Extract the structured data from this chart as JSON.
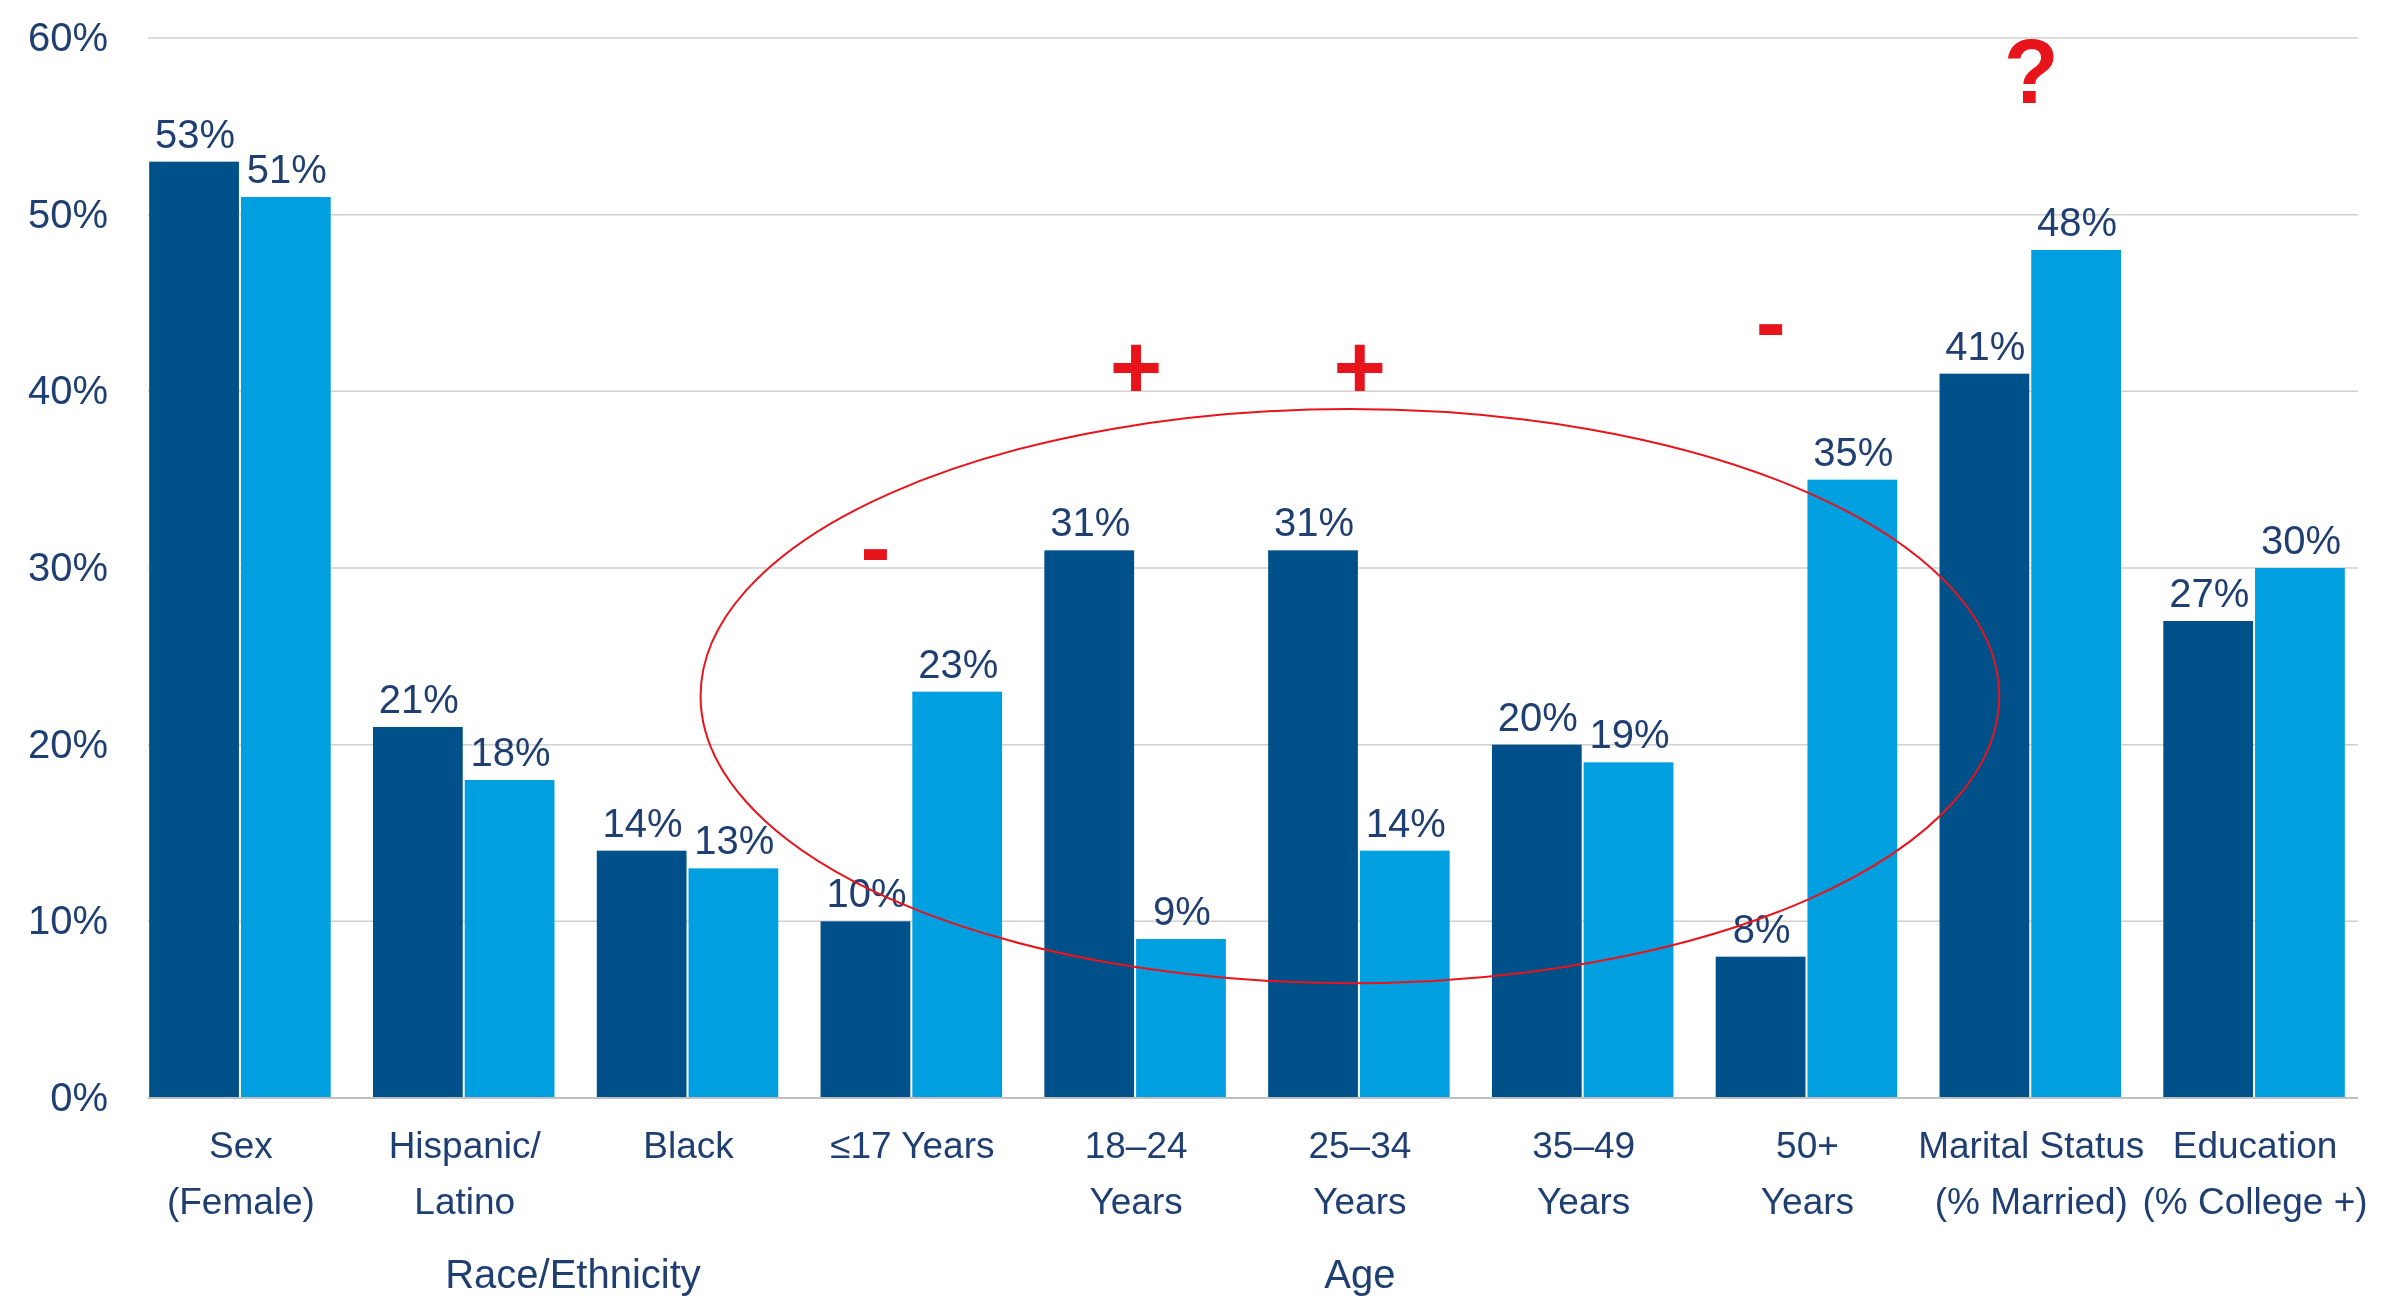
{
  "chart_data": {
    "type": "bar",
    "categories": [
      "Sex\n(Female)",
      "Hispanic/\nLatino",
      "Black",
      "≤17 Years",
      "18–24\nYears",
      "25–34\nYears",
      "35–49\nYears",
      "50+\nYears",
      "Marital Status\n(% Married)",
      "Education\n(% College +)"
    ],
    "series": [
      {
        "color": "#00508a",
        "values": [
          53,
          21,
          14,
          10,
          31,
          31,
          20,
          8,
          41,
          27
        ],
        "value_labels": [
          "53%",
          "21%",
          "14%",
          "10%",
          "31%",
          "31%",
          "20%",
          "8%",
          "41%",
          "27%"
        ]
      },
      {
        "color": "#009fdf",
        "values": [
          51,
          18,
          13,
          23,
          9,
          14,
          19,
          35,
          48,
          30
        ],
        "value_labels": [
          "51%",
          "18%",
          "13%",
          "23%",
          "9%",
          "14%",
          "19%",
          "35%",
          "48%",
          "30%"
        ]
      }
    ],
    "ylim": [
      0,
      60
    ],
    "yticks": [
      {
        "value": 0,
        "label": "0%"
      },
      {
        "value": 10,
        "label": "10%"
      },
      {
        "value": 20,
        "label": "20%"
      },
      {
        "value": 30,
        "label": "30%"
      },
      {
        "value": 40,
        "label": "40%"
      },
      {
        "value": 50,
        "label": "50%"
      },
      {
        "value": 60,
        "label": "60%"
      }
    ],
    "grid": "y",
    "annotations": [
      "-",
      "+",
      "+",
      "-",
      "?",
      "Race/Ethnicity",
      "Age"
    ]
  }
}
